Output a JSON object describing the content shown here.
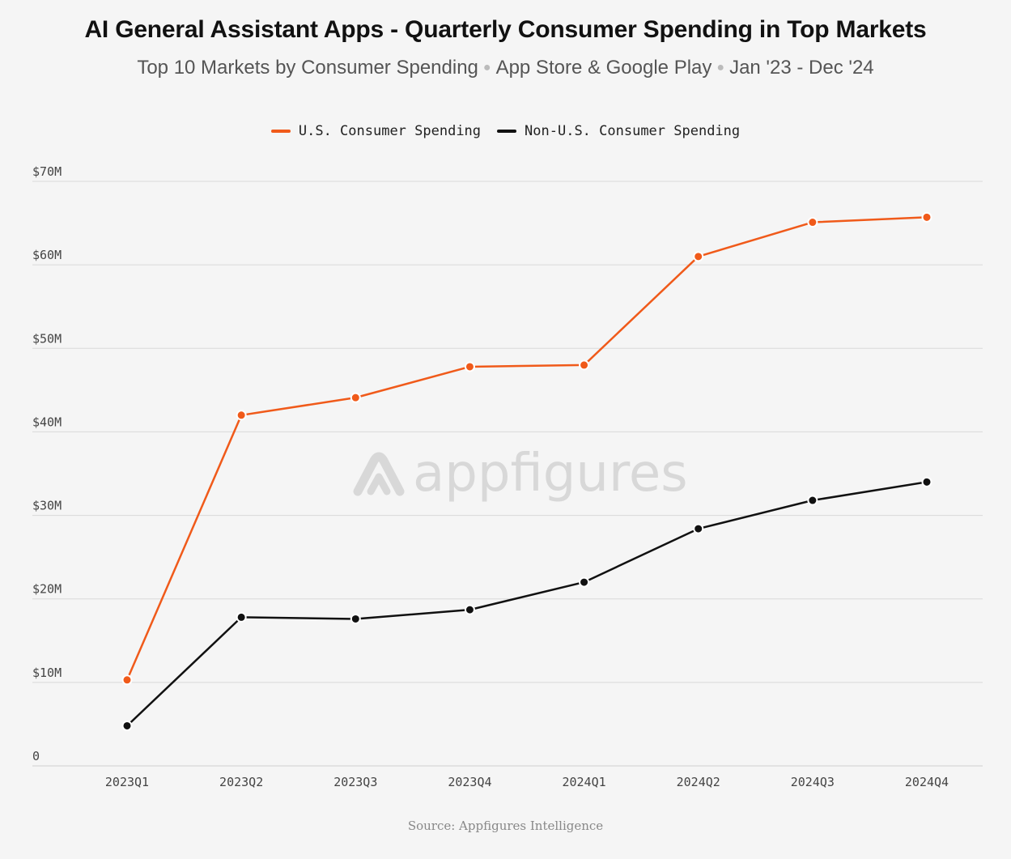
{
  "header": {
    "title": "AI General Assistant Apps - Quarterly Consumer Spending in Top Markets",
    "subtitle_parts": [
      "Top 10 Markets by Consumer Spending",
      "App Store & Google Play",
      "Jan '23 - Dec '24"
    ],
    "separator": "●"
  },
  "watermark": {
    "text": "appfigures",
    "icon": "appfigures-logo-icon"
  },
  "source": "Source: Appfigures Intelligence",
  "colors": {
    "us": "#f05a1a",
    "non_us": "#111111",
    "grid": "#d9d9d9",
    "axis_text": "#444444"
  },
  "chart_data": {
    "type": "line",
    "title": "AI General Assistant Apps - Quarterly Consumer Spending in Top Markets",
    "subtitle": "Top 10 Markets by Consumer Spending · App Store & Google Play · Jan '23 - Dec '24",
    "x": [
      "2023Q1",
      "2023Q2",
      "2023Q3",
      "2023Q4",
      "2024Q1",
      "2024Q2",
      "2024Q3",
      "2024Q4"
    ],
    "y_ticks": [
      0,
      10,
      20,
      30,
      40,
      50,
      60,
      70
    ],
    "y_tick_labels": [
      "0",
      "$10M",
      "$20M",
      "$30M",
      "$40M",
      "$50M",
      "$60M",
      "$70M"
    ],
    "ylim": [
      0,
      70
    ],
    "y_unit": "millions USD",
    "grid": true,
    "legend_position": "top-center",
    "series": [
      {
        "name": "U.S. Consumer Spending",
        "color": "#f05a1a",
        "values": [
          10.3,
          42.0,
          44.1,
          47.8,
          48.0,
          61.0,
          65.1,
          65.7
        ]
      },
      {
        "name": "Non-U.S. Consumer Spending",
        "color": "#111111",
        "values": [
          4.8,
          17.8,
          17.6,
          18.7,
          22.0,
          28.4,
          31.8,
          34.0
        ]
      }
    ]
  }
}
